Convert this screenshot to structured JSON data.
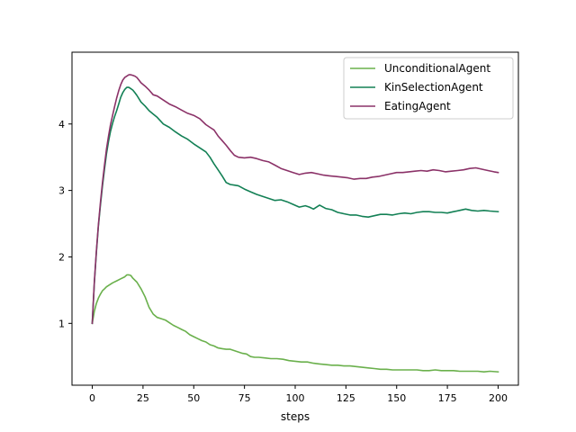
{
  "chart_data": {
    "type": "line",
    "title": "",
    "xlabel": "steps",
    "ylabel": "",
    "xlim": [
      -10,
      210
    ],
    "ylim": [
      0.07,
      5.08
    ],
    "x_ticks": [
      0,
      25,
      50,
      75,
      100,
      125,
      150,
      175,
      200
    ],
    "y_ticks": [
      1,
      2,
      3,
      4
    ],
    "grid": false,
    "legend_position": "upper right",
    "series": [
      {
        "name": "UnconditionalAgent",
        "color": "#6ab04c",
        "x": [
          0,
          1,
          2,
          3,
          4,
          5,
          6,
          7,
          8,
          10,
          12,
          14,
          16,
          17,
          18,
          19,
          20,
          22,
          24,
          26,
          28,
          30,
          32,
          34,
          36,
          38,
          40,
          42,
          44,
          46,
          48,
          50,
          52,
          54,
          56,
          58,
          60,
          62,
          64,
          66,
          68,
          70,
          72,
          74,
          76,
          78,
          80,
          82,
          85,
          88,
          91,
          94,
          97,
          100,
          103,
          106,
          109,
          112,
          115,
          118,
          121,
          124,
          127,
          130,
          133,
          136,
          139,
          142,
          145,
          148,
          151,
          154,
          157,
          160,
          163,
          166,
          169,
          172,
          175,
          178,
          181,
          184,
          187,
          190,
          193,
          196,
          200
        ],
        "y": [
          1.0,
          1.18,
          1.3,
          1.38,
          1.44,
          1.49,
          1.52,
          1.55,
          1.57,
          1.61,
          1.64,
          1.67,
          1.7,
          1.73,
          1.73,
          1.72,
          1.68,
          1.62,
          1.52,
          1.4,
          1.24,
          1.14,
          1.09,
          1.07,
          1.05,
          1.01,
          0.97,
          0.94,
          0.91,
          0.88,
          0.83,
          0.8,
          0.77,
          0.74,
          0.72,
          0.68,
          0.66,
          0.63,
          0.62,
          0.61,
          0.61,
          0.59,
          0.57,
          0.55,
          0.54,
          0.5,
          0.49,
          0.49,
          0.48,
          0.47,
          0.47,
          0.46,
          0.44,
          0.43,
          0.42,
          0.42,
          0.4,
          0.39,
          0.38,
          0.37,
          0.37,
          0.36,
          0.36,
          0.35,
          0.34,
          0.33,
          0.32,
          0.31,
          0.31,
          0.3,
          0.3,
          0.3,
          0.3,
          0.3,
          0.29,
          0.29,
          0.3,
          0.29,
          0.29,
          0.29,
          0.28,
          0.28,
          0.28,
          0.28,
          0.27,
          0.28,
          0.27
        ]
      },
      {
        "name": "KinSelectionAgent",
        "color": "#138055",
        "x": [
          0,
          1,
          2,
          3,
          4,
          5,
          6,
          7,
          8,
          9,
          10,
          11,
          12,
          13,
          14,
          15,
          16,
          17,
          18,
          19,
          20,
          21,
          22,
          23,
          24,
          26,
          28,
          30,
          32,
          35,
          38,
          41,
          44,
          47,
          50,
          53,
          56,
          58,
          60,
          62,
          64,
          66,
          68,
          70,
          72,
          75,
          78,
          81,
          84,
          87,
          90,
          93,
          96,
          99,
          102,
          105,
          107,
          109,
          112,
          115,
          118,
          121,
          124,
          127,
          130,
          133,
          136,
          139,
          142,
          145,
          148,
          151,
          154,
          157,
          160,
          163,
          166,
          169,
          172,
          175,
          178,
          181,
          184,
          187,
          190,
          193,
          196,
          200
        ],
        "y": [
          1.0,
          1.6,
          2.07,
          2.46,
          2.78,
          3.06,
          3.32,
          3.55,
          3.74,
          3.89,
          4.01,
          4.11,
          4.2,
          4.3,
          4.4,
          4.47,
          4.52,
          4.55,
          4.55,
          4.53,
          4.51,
          4.47,
          4.43,
          4.38,
          4.33,
          4.27,
          4.2,
          4.15,
          4.1,
          4.0,
          3.95,
          3.88,
          3.82,
          3.77,
          3.7,
          3.64,
          3.58,
          3.5,
          3.4,
          3.31,
          3.22,
          3.12,
          3.09,
          3.08,
          3.07,
          3.02,
          2.98,
          2.94,
          2.91,
          2.88,
          2.85,
          2.86,
          2.83,
          2.79,
          2.75,
          2.77,
          2.75,
          2.72,
          2.78,
          2.73,
          2.71,
          2.67,
          2.65,
          2.63,
          2.63,
          2.61,
          2.6,
          2.62,
          2.64,
          2.64,
          2.63,
          2.65,
          2.66,
          2.65,
          2.67,
          2.68,
          2.68,
          2.67,
          2.67,
          2.66,
          2.68,
          2.7,
          2.72,
          2.7,
          2.69,
          2.7,
          2.69,
          2.68
        ]
      },
      {
        "name": "EatingAgent",
        "color": "#8b3268",
        "x": [
          0,
          1,
          2,
          3,
          4,
          5,
          6,
          7,
          8,
          9,
          10,
          11,
          12,
          13,
          14,
          15,
          16,
          17,
          18,
          19,
          20,
          21,
          22,
          23,
          24,
          26,
          28,
          30,
          32,
          35,
          38,
          41,
          44,
          47,
          50,
          53,
          56,
          58,
          60,
          62,
          64,
          66,
          68,
          70,
          72,
          75,
          78,
          81,
          84,
          87,
          90,
          93,
          96,
          99,
          102,
          105,
          108,
          111,
          114,
          117,
          120,
          123,
          126,
          129,
          132,
          135,
          138,
          141,
          144,
          147,
          150,
          153,
          156,
          159,
          162,
          165,
          168,
          171,
          174,
          177,
          180,
          183,
          186,
          189,
          192,
          195,
          198,
          200
        ],
        "y": [
          1.0,
          1.62,
          2.09,
          2.48,
          2.82,
          3.11,
          3.38,
          3.62,
          3.82,
          3.99,
          4.13,
          4.26,
          4.39,
          4.5,
          4.59,
          4.66,
          4.7,
          4.72,
          4.74,
          4.74,
          4.73,
          4.72,
          4.7,
          4.66,
          4.62,
          4.57,
          4.51,
          4.44,
          4.42,
          4.36,
          4.3,
          4.26,
          4.21,
          4.16,
          4.13,
          4.08,
          3.99,
          3.95,
          3.91,
          3.82,
          3.75,
          3.68,
          3.6,
          3.53,
          3.5,
          3.49,
          3.5,
          3.48,
          3.45,
          3.43,
          3.38,
          3.33,
          3.3,
          3.27,
          3.24,
          3.26,
          3.27,
          3.25,
          3.23,
          3.22,
          3.21,
          3.2,
          3.19,
          3.17,
          3.18,
          3.18,
          3.2,
          3.21,
          3.23,
          3.25,
          3.27,
          3.27,
          3.28,
          3.29,
          3.3,
          3.29,
          3.31,
          3.3,
          3.28,
          3.29,
          3.3,
          3.31,
          3.33,
          3.34,
          3.32,
          3.3,
          3.28,
          3.27
        ]
      }
    ]
  }
}
